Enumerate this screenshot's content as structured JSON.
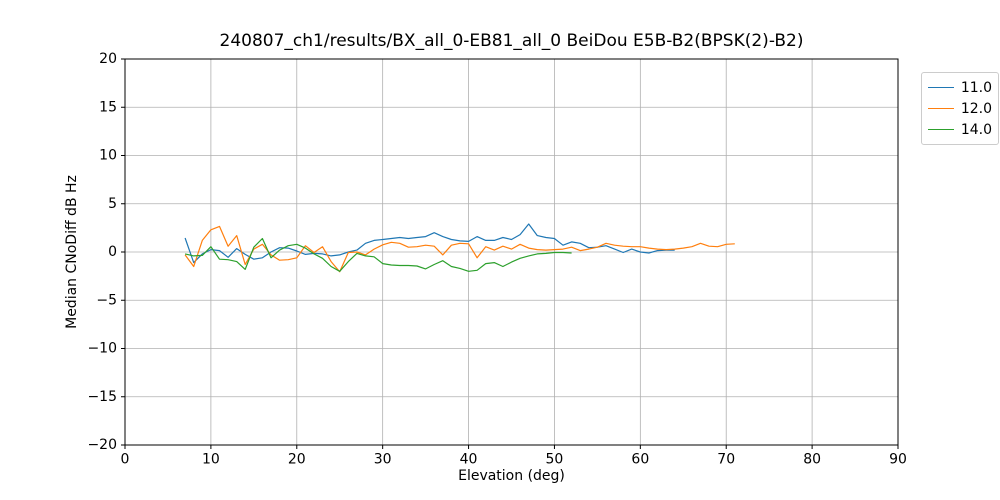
{
  "chart_data": {
    "type": "line",
    "title": "240807_ch1/results/BX_all_0-EB81_all_0 BeiDou E5B-B2(BPSK(2)-B2)",
    "xlabel": "Elevation (deg)",
    "ylabel": "Median CNoDiff dB Hz",
    "xlim": [
      0,
      90
    ],
    "ylim": [
      -20,
      20
    ],
    "xticks": [
      0,
      10,
      20,
      30,
      40,
      50,
      60,
      70,
      80,
      90
    ],
    "yticks": [
      -20,
      -15,
      -10,
      -5,
      0,
      5,
      10,
      15,
      20
    ],
    "grid": true,
    "grid_color": "#b0b0b0",
    "legend_position": "outside-top-right",
    "series": [
      {
        "name": "11.0",
        "color": "#1f77b4",
        "points": [
          [
            7,
            1.45
          ],
          [
            8,
            -1.1
          ],
          [
            9,
            -0.2
          ],
          [
            10,
            0.25
          ],
          [
            11,
            0.15
          ],
          [
            12,
            -0.55
          ],
          [
            13,
            0.35
          ],
          [
            14,
            -0.25
          ],
          [
            15,
            -0.75
          ],
          [
            16,
            -0.6
          ],
          [
            17,
            0.0
          ],
          [
            18,
            0.45
          ],
          [
            19,
            0.4
          ],
          [
            20,
            0.1
          ],
          [
            21,
            -0.25
          ],
          [
            22,
            -0.15
          ],
          [
            23,
            -0.2
          ],
          [
            24,
            -0.4
          ],
          [
            25,
            -0.3
          ],
          [
            26,
            0.0
          ],
          [
            27,
            0.2
          ],
          [
            28,
            0.9
          ],
          [
            29,
            1.2
          ],
          [
            30,
            1.3
          ],
          [
            31,
            1.4
          ],
          [
            32,
            1.5
          ],
          [
            33,
            1.4
          ],
          [
            34,
            1.5
          ],
          [
            35,
            1.6
          ],
          [
            36,
            2.0
          ],
          [
            37,
            1.6
          ],
          [
            38,
            1.3
          ],
          [
            39,
            1.15
          ],
          [
            40,
            1.1
          ],
          [
            41,
            1.6
          ],
          [
            42,
            1.2
          ],
          [
            43,
            1.2
          ],
          [
            44,
            1.5
          ],
          [
            45,
            1.3
          ],
          [
            46,
            1.8
          ],
          [
            47,
            2.9
          ],
          [
            48,
            1.7
          ],
          [
            49,
            1.5
          ],
          [
            50,
            1.4
          ],
          [
            51,
            0.7
          ],
          [
            52,
            1.05
          ],
          [
            53,
            0.9
          ],
          [
            54,
            0.45
          ],
          [
            55,
            0.5
          ],
          [
            56,
            0.65
          ],
          [
            57,
            0.3
          ],
          [
            58,
            -0.05
          ],
          [
            59,
            0.3
          ],
          [
            60,
            0.0
          ],
          [
            61,
            -0.1
          ],
          [
            62,
            0.15
          ],
          [
            63,
            0.2
          ],
          [
            64,
            0.2
          ]
        ]
      },
      {
        "name": "12.0",
        "color": "#ff7f0e",
        "points": [
          [
            7,
            -0.3
          ],
          [
            8,
            -1.5
          ],
          [
            9,
            1.2
          ],
          [
            10,
            2.3
          ],
          [
            11,
            2.65
          ],
          [
            12,
            0.6
          ],
          [
            13,
            1.7
          ],
          [
            14,
            -1.3
          ],
          [
            15,
            0.3
          ],
          [
            16,
            0.8
          ],
          [
            17,
            -0.3
          ],
          [
            18,
            -0.85
          ],
          [
            19,
            -0.8
          ],
          [
            20,
            -0.6
          ],
          [
            21,
            0.65
          ],
          [
            22,
            -0.05
          ],
          [
            23,
            0.55
          ],
          [
            24,
            -1.0
          ],
          [
            25,
            -2.05
          ],
          [
            26,
            -0.05
          ],
          [
            27,
            0.0
          ],
          [
            28,
            -0.3
          ],
          [
            29,
            0.3
          ],
          [
            30,
            0.75
          ],
          [
            31,
            1.0
          ],
          [
            32,
            0.9
          ],
          [
            33,
            0.5
          ],
          [
            34,
            0.55
          ],
          [
            35,
            0.7
          ],
          [
            36,
            0.6
          ],
          [
            37,
            -0.3
          ],
          [
            38,
            0.7
          ],
          [
            39,
            0.9
          ],
          [
            40,
            0.85
          ],
          [
            41,
            -0.6
          ],
          [
            42,
            0.55
          ],
          [
            43,
            0.2
          ],
          [
            44,
            0.6
          ],
          [
            45,
            0.3
          ],
          [
            46,
            0.8
          ],
          [
            47,
            0.4
          ],
          [
            48,
            0.25
          ],
          [
            49,
            0.2
          ],
          [
            50,
            0.25
          ],
          [
            51,
            0.3
          ],
          [
            52,
            0.5
          ],
          [
            53,
            0.15
          ],
          [
            54,
            0.3
          ],
          [
            55,
            0.5
          ],
          [
            56,
            0.9
          ],
          [
            57,
            0.7
          ],
          [
            58,
            0.6
          ],
          [
            59,
            0.55
          ],
          [
            60,
            0.55
          ],
          [
            61,
            0.4
          ],
          [
            62,
            0.3
          ],
          [
            63,
            0.25
          ],
          [
            64,
            0.3
          ],
          [
            65,
            0.4
          ],
          [
            66,
            0.55
          ],
          [
            67,
            0.9
          ],
          [
            68,
            0.6
          ],
          [
            69,
            0.55
          ],
          [
            70,
            0.8
          ],
          [
            71,
            0.85
          ]
        ]
      },
      {
        "name": "14.0",
        "color": "#2ca02c",
        "points": [
          [
            7,
            -0.2
          ],
          [
            8,
            -0.4
          ],
          [
            9,
            -0.35
          ],
          [
            10,
            0.55
          ],
          [
            11,
            -0.75
          ],
          [
            12,
            -0.8
          ],
          [
            13,
            -1.0
          ],
          [
            14,
            -1.8
          ],
          [
            15,
            0.5
          ],
          [
            16,
            1.4
          ],
          [
            17,
            -0.6
          ],
          [
            18,
            0.2
          ],
          [
            19,
            0.65
          ],
          [
            20,
            0.8
          ],
          [
            21,
            0.4
          ],
          [
            22,
            -0.2
          ],
          [
            23,
            -0.65
          ],
          [
            24,
            -1.5
          ],
          [
            25,
            -2.0
          ],
          [
            26,
            -1.0
          ],
          [
            27,
            -0.15
          ],
          [
            28,
            -0.4
          ],
          [
            29,
            -0.5
          ],
          [
            30,
            -1.2
          ],
          [
            31,
            -1.35
          ],
          [
            32,
            -1.4
          ],
          [
            33,
            -1.4
          ],
          [
            34,
            -1.45
          ],
          [
            35,
            -1.75
          ],
          [
            36,
            -1.3
          ],
          [
            37,
            -0.9
          ],
          [
            38,
            -1.5
          ],
          [
            39,
            -1.7
          ],
          [
            40,
            -2.0
          ],
          [
            41,
            -1.9
          ],
          [
            42,
            -1.2
          ],
          [
            43,
            -1.1
          ],
          [
            44,
            -1.5
          ],
          [
            45,
            -1.05
          ],
          [
            46,
            -0.65
          ],
          [
            47,
            -0.4
          ],
          [
            48,
            -0.2
          ],
          [
            49,
            -0.15
          ],
          [
            50,
            -0.05
          ],
          [
            51,
            -0.05
          ],
          [
            52,
            -0.1
          ]
        ]
      }
    ]
  }
}
